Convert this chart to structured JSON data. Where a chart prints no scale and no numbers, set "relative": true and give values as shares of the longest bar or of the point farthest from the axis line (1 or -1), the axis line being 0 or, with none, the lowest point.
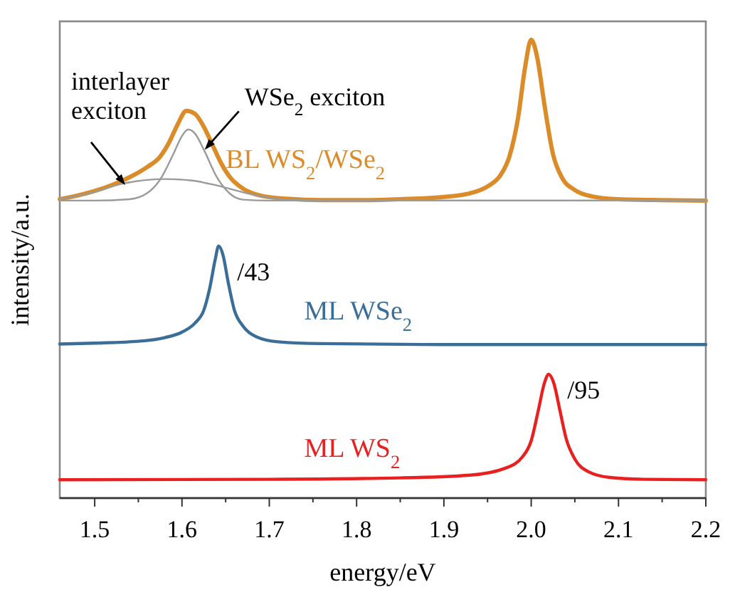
{
  "chart_data": {
    "type": "line",
    "relative": true,
    "xlabel": "energy/eV",
    "ylabel": "intensity/a.u.",
    "xlim": [
      1.46,
      2.2
    ],
    "xticks": [
      1.5,
      1.6,
      1.7,
      1.8,
      1.9,
      {
        "value": 2,
        "label": "2.0"
      },
      2.1,
      2.2
    ],
    "grid": false,
    "legend": false,
    "marker": "none",
    "line_style": "solid",
    "series": [
      {
        "name": "BL WS$_{2}$/WSe$_{2}$",
        "color": "#db8b28",
        "x": [
          1.46,
          1.48,
          1.5,
          1.52,
          1.54,
          1.56,
          1.575,
          1.585,
          1.595,
          1.605,
          1.615,
          1.625,
          1.635,
          1.645,
          1.655,
          1.67,
          1.69,
          1.72,
          1.76,
          1.8,
          1.85,
          1.9,
          1.93,
          1.95,
          1.965,
          1.975,
          1.985,
          1.993,
          2.0,
          2.007,
          2.015,
          2.025,
          2.035,
          2.05,
          2.07,
          2.1,
          2.15,
          2.2
        ],
        "values": [
          0.652,
          0.66,
          0.67,
          0.683,
          0.7,
          0.722,
          0.745,
          0.775,
          0.815,
          0.845,
          0.838,
          0.81,
          0.77,
          0.73,
          0.7,
          0.675,
          0.66,
          0.653,
          0.65,
          0.65,
          0.652,
          0.657,
          0.665,
          0.68,
          0.705,
          0.745,
          0.83,
          0.94,
          1.0,
          0.96,
          0.86,
          0.75,
          0.7,
          0.672,
          0.658,
          0.652,
          0.65,
          0.649
        ]
      },
      {
        "color": "#9a9a9a",
        "x": [
          1.46,
          1.5,
          1.54,
          1.56,
          1.575,
          1.59,
          1.6,
          1.607,
          1.615,
          1.625,
          1.64,
          1.655,
          1.67,
          1.7,
          2.2
        ],
        "values": [
          0.649,
          0.649,
          0.652,
          0.665,
          0.695,
          0.75,
          0.79,
          0.804,
          0.795,
          0.76,
          0.7,
          0.664,
          0.651,
          0.649,
          0.649
        ]
      },
      {
        "color": "#9a9a9a",
        "x": [
          1.46,
          1.5,
          1.53,
          1.56,
          1.58,
          1.61,
          1.64,
          1.67,
          1.7,
          1.73,
          1.76,
          2.2
        ],
        "values": [
          0.652,
          0.668,
          0.685,
          0.694,
          0.696,
          0.693,
          0.682,
          0.667,
          0.655,
          0.65,
          0.649,
          0.649
        ]
      },
      {
        "name": "ML WSe$_{2}$",
        "color": "#3a6e99",
        "x": [
          1.46,
          1.5,
          1.55,
          1.58,
          1.6,
          1.615,
          1.625,
          1.632,
          1.638,
          1.642,
          1.647,
          1.653,
          1.66,
          1.67,
          1.685,
          1.71,
          1.76,
          1.9,
          2.2
        ],
        "values": [
          0.336,
          0.338,
          0.342,
          0.35,
          0.362,
          0.382,
          0.41,
          0.46,
          0.52,
          0.55,
          0.53,
          0.47,
          0.41,
          0.375,
          0.352,
          0.341,
          0.337,
          0.335,
          0.335
        ]
      },
      {
        "name": "ML WS$_{2}$",
        "color": "#e8201f",
        "x": [
          1.46,
          1.7,
          1.85,
          1.93,
          1.97,
          1.99,
          2.0,
          2.008,
          2.015,
          2.02,
          2.026,
          2.033,
          2.04,
          2.05,
          2.065,
          2.09,
          2.13,
          2.2
        ],
        "values": [
          0.04,
          0.041,
          0.044,
          0.05,
          0.065,
          0.09,
          0.125,
          0.19,
          0.25,
          0.27,
          0.25,
          0.19,
          0.13,
          0.085,
          0.058,
          0.045,
          0.041,
          0.04
        ]
      }
    ],
    "annotations": [
      {
        "text": "interlayer exciton",
        "x": 1.535,
        "y": 0.683
      },
      {
        "text": "WSe$_{2}$ exciton",
        "x": 1.626,
        "y": 0.76
      },
      {
        "text": "/43",
        "x": 1.642,
        "y": 0.55
      },
      {
        "text": "/95",
        "x": 2.02,
        "y": 0.27
      }
    ]
  }
}
